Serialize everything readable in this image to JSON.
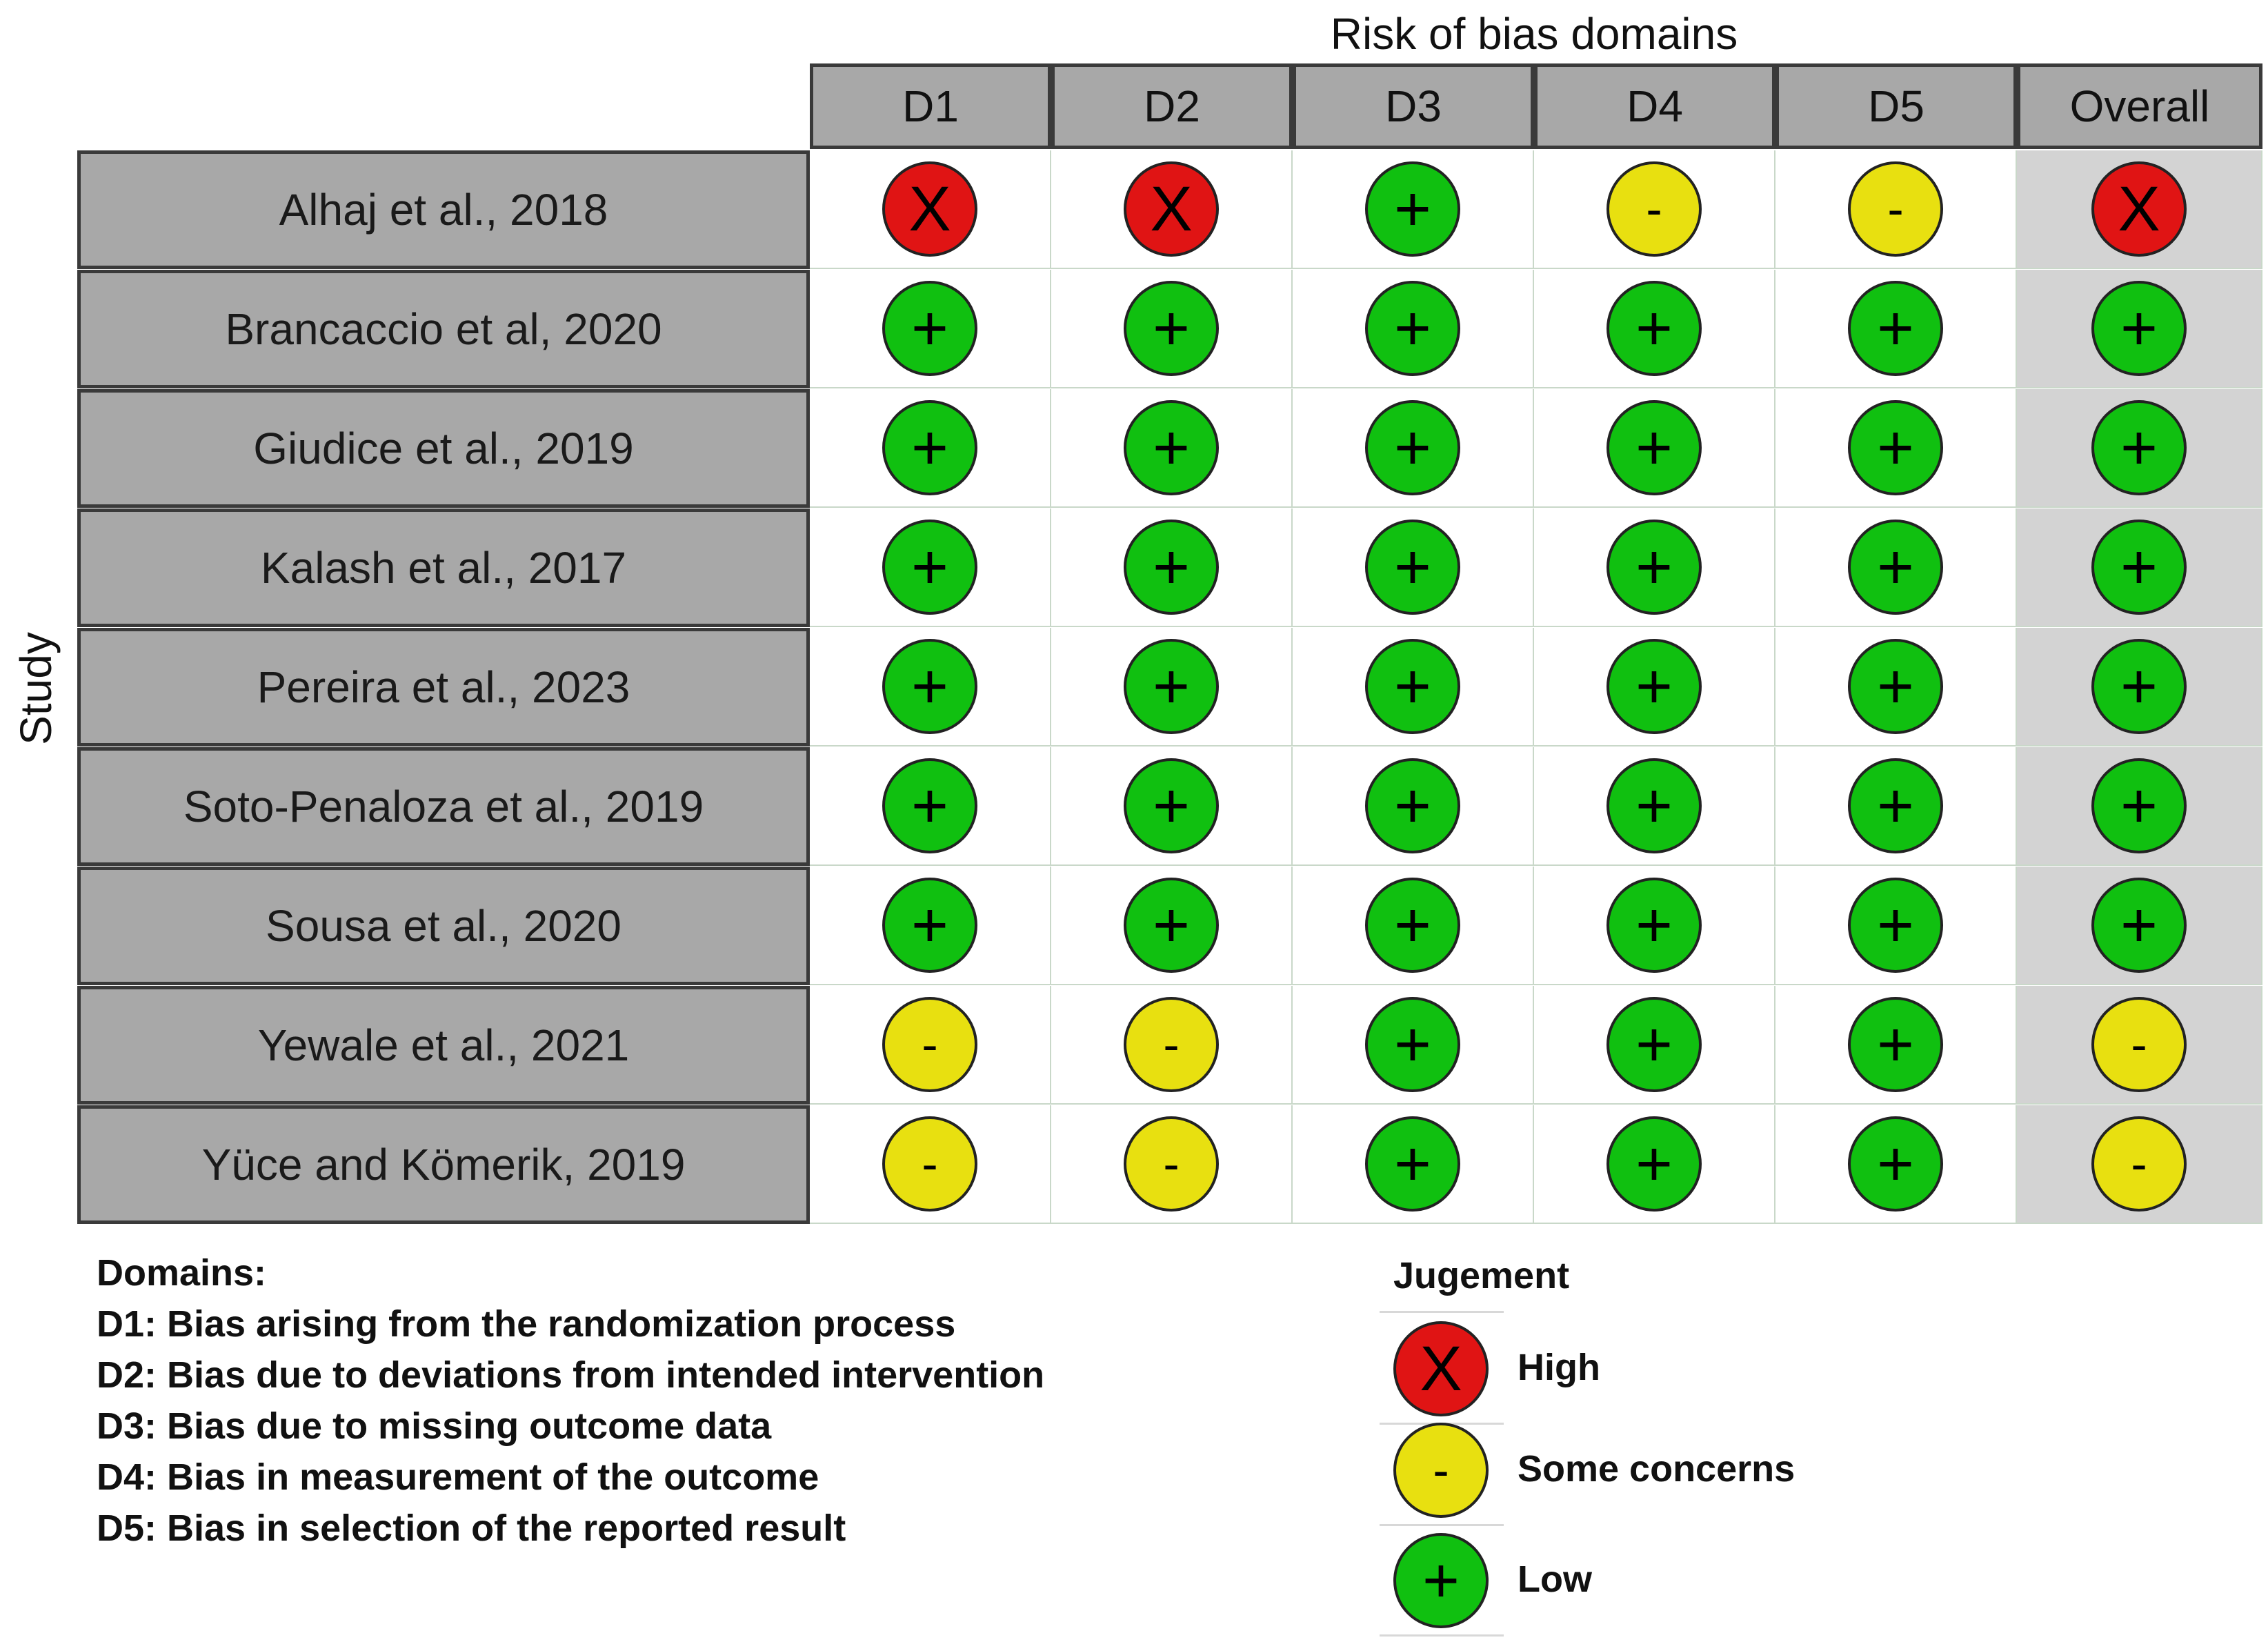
{
  "chart_data": {
    "type": "table",
    "title": "Risk of bias domains",
    "ylabel": "Study",
    "columns": [
      "D1",
      "D2",
      "D3",
      "D4",
      "D5",
      "Overall"
    ],
    "rows": [
      {
        "study": "Alhaj et al., 2018",
        "judgements": [
          "high",
          "high",
          "low",
          "some",
          "some",
          "high"
        ]
      },
      {
        "study": "Brancaccio et al, 2020",
        "judgements": [
          "low",
          "low",
          "low",
          "low",
          "low",
          "low"
        ]
      },
      {
        "study": "Giudice et al., 2019",
        "judgements": [
          "low",
          "low",
          "low",
          "low",
          "low",
          "low"
        ]
      },
      {
        "study": "Kalash et al., 2017",
        "judgements": [
          "low",
          "low",
          "low",
          "low",
          "low",
          "low"
        ]
      },
      {
        "study": "Pereira et al., 2023",
        "judgements": [
          "low",
          "low",
          "low",
          "low",
          "low",
          "low"
        ]
      },
      {
        "study": "Soto-Penaloza et al., 2019",
        "judgements": [
          "low",
          "low",
          "low",
          "low",
          "low",
          "low"
        ]
      },
      {
        "study": "Sousa et al., 2020",
        "judgements": [
          "low",
          "low",
          "low",
          "low",
          "low",
          "low"
        ]
      },
      {
        "study": "Yewale et al., 2021",
        "judgements": [
          "some",
          "some",
          "low",
          "low",
          "low",
          "some"
        ]
      },
      {
        "study": "Yüce and Kömerik, 2019",
        "judgements": [
          "some",
          "some",
          "low",
          "low",
          "low",
          "some"
        ]
      }
    ],
    "symbols": {
      "high": {
        "glyph": "X",
        "color": "#e01414"
      },
      "some": {
        "glyph": "-",
        "color": "#e8e010"
      },
      "low": {
        "glyph": "+",
        "color": "#10c010"
      }
    }
  },
  "domains": {
    "heading": "Domains:",
    "items": [
      "D1: Bias arising from the randomization process",
      "D2: Bias due to deviations from intended intervention",
      "D3: Bias due to missing outcome data",
      "D4: Bias in measurement of the outcome",
      "D5: Bias in selection of the reported result"
    ]
  },
  "legend": {
    "title": "Jugement",
    "items": [
      {
        "key": "high",
        "label": "High"
      },
      {
        "key": "some",
        "label": "Some concerns"
      },
      {
        "key": "low",
        "label": "Low"
      }
    ]
  }
}
